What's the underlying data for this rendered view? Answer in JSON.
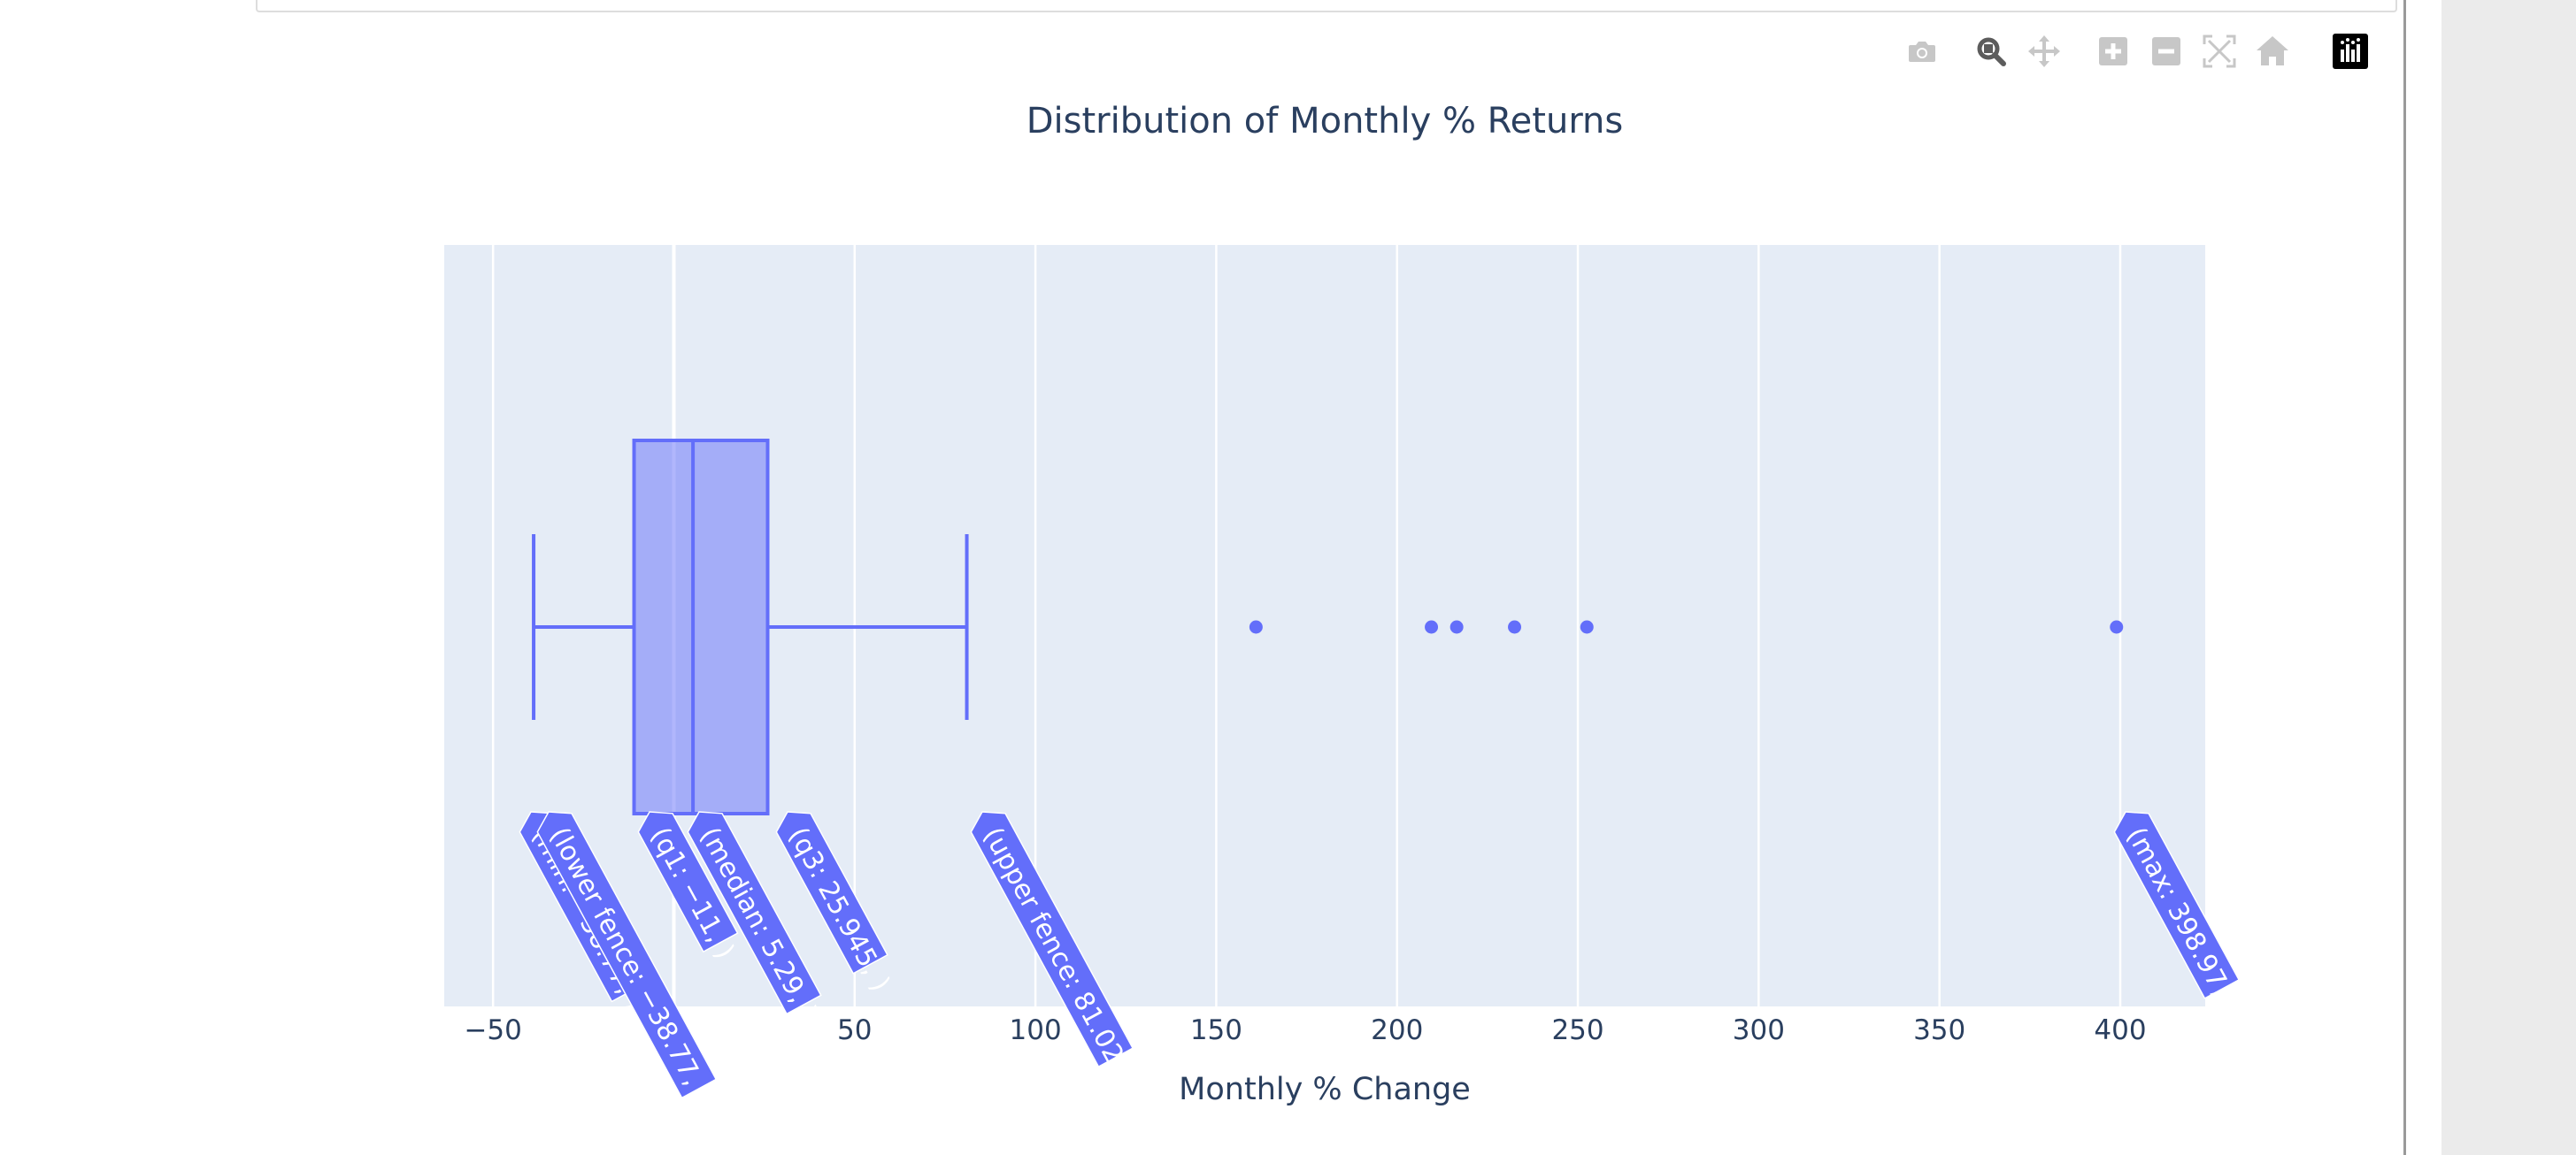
{
  "modebar": {
    "buttons": [
      {
        "name": "camera-icon",
        "title": "Download plot as a png"
      },
      {
        "name": "zoom-icon",
        "title": "Zoom"
      },
      {
        "name": "pan-icon",
        "title": "Pan"
      },
      {
        "name": "zoom-in-icon",
        "title": "Zoom in"
      },
      {
        "name": "zoom-out-icon",
        "title": "Zoom out"
      },
      {
        "name": "autoscale-icon",
        "title": "Autoscale"
      },
      {
        "name": "reset-axes-icon",
        "title": "Reset axes"
      },
      {
        "name": "plotly-logo-icon",
        "title": "Produced with Plotly"
      }
    ],
    "active": "zoom-icon"
  },
  "chart_data": {
    "type": "box",
    "orientation": "horizontal",
    "title": "Distribution of Monthly % Returns",
    "xlabel": "Monthly % Change",
    "ylabel": "",
    "xlim": [
      -63.5,
      423.5
    ],
    "x_ticks": [
      -50,
      0,
      50,
      100,
      150,
      200,
      250,
      300,
      350,
      400
    ],
    "x_tick_labels": [
      "−50",
      "",
      "50",
      "100",
      "150",
      "200",
      "250",
      "300",
      "350",
      "400"
    ],
    "grid": true,
    "colors": {
      "box": "#636efa",
      "fill": "rgba(99,110,250,0.5)",
      "plot_bg": "#e5ecf6",
      "text": "#2a3f5f"
    },
    "stats": {
      "min": -38.77,
      "lower_fence": -38.77,
      "q1": -11,
      "median": 5.29,
      "q3": 25.945,
      "upper_fence": 81.02,
      "max": 398.97
    },
    "outliers": [
      161,
      209.5,
      216.5,
      232.5,
      252.5,
      398.97
    ],
    "hover_labels": [
      {
        "key": "min",
        "text": "(min: −38.77, )"
      },
      {
        "key": "lower_fence",
        "text": "(lower fence: −38.77, )"
      },
      {
        "key": "q1",
        "text": "(q1: −11, )"
      },
      {
        "key": "median",
        "text": "(median: 5.29, )"
      },
      {
        "key": "q3",
        "text": "(q3: 25.945, )"
      },
      {
        "key": "upper_fence",
        "text": "(upper fence: 81.02, )"
      },
      {
        "key": "max",
        "text": "(max: 398.97, )"
      }
    ]
  }
}
